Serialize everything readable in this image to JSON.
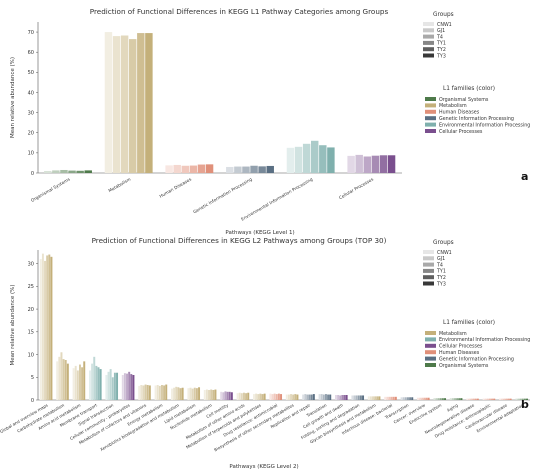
{
  "chart_data": [
    {
      "type": "bar",
      "panel": "a",
      "title": "Prediction of Functional Differences in KEGG L1 Pathway Categories among Groups",
      "xlabel": "Pathways (KEGG Level 1)",
      "ylabel": "Mean relative abundance (%)",
      "ylim": [
        0,
        75
      ],
      "yticks": [
        0,
        10,
        20,
        30,
        40,
        50,
        60,
        70
      ],
      "groups_legend": {
        "title": "Groups",
        "labels": [
          "CNW1",
          "GJ1",
          "T4",
          "TY1",
          "TY2",
          "TY3"
        ],
        "placement": "top-right"
      },
      "families_legend": {
        "title": "L1 families (color)",
        "placement": "right",
        "items": [
          {
            "label": "Organismal Systems",
            "color": "#4e7a4a"
          },
          {
            "label": "Metabolism",
            "color": "#c4b07a"
          },
          {
            "label": "Human Diseases",
            "color": "#e0907a"
          },
          {
            "label": "Genetic Information Processing",
            "color": "#5a6f83"
          },
          {
            "label": "Environmental Information Processing",
            "color": "#7fb0ad"
          },
          {
            "label": "Cellular Processes",
            "color": "#7a4f8e"
          }
        ]
      },
      "categories": [
        "Organismal Systems",
        "Metabolism",
        "Human Diseases",
        "Genetic Information Processing",
        "Environmental Information Processing",
        "Cellular Processes"
      ],
      "families": [
        "Organismal Systems",
        "Metabolism",
        "Human Diseases",
        "Genetic Information Processing",
        "Environmental Information Processing",
        "Cellular Processes"
      ],
      "series": [
        {
          "name": "CNW1",
          "values": [
            1.0,
            70.0,
            3.8,
            3.0,
            12.5,
            8.5
          ]
        },
        {
          "name": "GJ1",
          "values": [
            1.3,
            68.0,
            4.0,
            3.2,
            13.0,
            9.0
          ]
        },
        {
          "name": "T4",
          "values": [
            1.5,
            68.3,
            3.6,
            3.2,
            14.5,
            8.2
          ]
        },
        {
          "name": "TY1",
          "values": [
            1.2,
            66.5,
            3.7,
            3.6,
            16.0,
            8.6
          ]
        },
        {
          "name": "TY2",
          "values": [
            1.1,
            69.5,
            4.2,
            3.3,
            13.8,
            8.8
          ]
        },
        {
          "name": "TY3",
          "values": [
            1.3,
            69.5,
            4.3,
            3.5,
            12.7,
            8.8
          ]
        }
      ],
      "panel_label": "a"
    },
    {
      "type": "bar",
      "panel": "b",
      "title": "Prediction of Functional Differences in KEGG L2 Pathways among Groups (TOP 30)",
      "xlabel": "Pathways (KEGG Level 2)",
      "ylabel": "Mean relative abundance (%)",
      "ylim": [
        0,
        33
      ],
      "yticks": [
        0,
        5,
        10,
        15,
        20,
        25,
        30
      ],
      "groups_legend": {
        "title": "Groups",
        "labels": [
          "CNW1",
          "GJ1",
          "T4",
          "TY1",
          "TY2",
          "TY3"
        ],
        "placement": "top-right"
      },
      "families_legend": {
        "title": "L1 families (color)",
        "placement": "right",
        "items": [
          {
            "label": "Metabolism",
            "color": "#c4b07a"
          },
          {
            "label": "Environmental Information Processing",
            "color": "#7fb0ad"
          },
          {
            "label": "Cellular Processes",
            "color": "#7a4f8e"
          },
          {
            "label": "Human Diseases",
            "color": "#e0907a"
          },
          {
            "label": "Genetic Information Processing",
            "color": "#5a6f83"
          },
          {
            "label": "Organismal Systems",
            "color": "#4e7a4a"
          }
        ]
      },
      "categories": [
        "Global and overview maps",
        "Carbohydrate metabolism",
        "Amino acid metabolism",
        "Membrane transport",
        "Signal transduction",
        "Cellular community - prokaryotes",
        "Metabolism of cofactors and vitamins",
        "Energy metabolism",
        "Xenobiotics biodegradation and metabolism",
        "Lipid metabolism",
        "Nucleotide metabolism",
        "Cell motility",
        "Metabolism of other amino acids",
        "Metabolism of terpenoids and polyketides",
        "Drug resistance: antimicrobial",
        "Biosynthesis of other secondary metabolites",
        "Replication and repair",
        "Translation",
        "Cell growth and death",
        "Folding, sorting and degradation",
        "Glycan biosynthesis and metabolism",
        "Infectious disease: bacterial",
        "Transcription",
        "Cancer: overview",
        "Endocrine system",
        "Aging",
        "Neurodegenerative disease",
        "Drug resistance: antineoplastic",
        "Cardiovascular disease",
        "Environmental adaptation"
      ],
      "families": [
        "Metabolism",
        "Metabolism",
        "Metabolism",
        "Environmental Information Processing",
        "Environmental Information Processing",
        "Cellular Processes",
        "Metabolism",
        "Metabolism",
        "Metabolism",
        "Metabolism",
        "Metabolism",
        "Cellular Processes",
        "Metabolism",
        "Metabolism",
        "Human Diseases",
        "Metabolism",
        "Genetic Information Processing",
        "Genetic Information Processing",
        "Cellular Processes",
        "Genetic Information Processing",
        "Metabolism",
        "Human Diseases",
        "Genetic Information Processing",
        "Human Diseases",
        "Organismal Systems",
        "Organismal Systems",
        "Human Diseases",
        "Human Diseases",
        "Human Diseases",
        "Organismal Systems"
      ],
      "series": [
        {
          "name": "CNW1",
          "values": [
            31.0,
            8.5,
            7.0,
            6.5,
            5.5,
            5.5,
            3.1,
            3.2,
            2.5,
            2.6,
            2.2,
            1.8,
            1.5,
            1.3,
            1.4,
            1.2,
            1.2,
            1.3,
            1.1,
            1.0,
            0.8,
            0.7,
            0.6,
            0.5,
            0.4,
            0.4,
            0.3,
            0.3,
            0.3,
            0.3
          ]
        },
        {
          "name": "GJ1",
          "values": [
            32.2,
            9.5,
            7.5,
            8.0,
            6.2,
            5.9,
            3.3,
            3.3,
            2.7,
            2.7,
            2.3,
            1.7,
            1.6,
            1.4,
            1.3,
            1.2,
            1.3,
            1.3,
            1.1,
            1.0,
            0.8,
            0.7,
            0.6,
            0.5,
            0.4,
            0.4,
            0.3,
            0.3,
            0.3,
            0.3
          ]
        },
        {
          "name": "T4",
          "values": [
            30.6,
            10.5,
            6.5,
            9.5,
            6.8,
            5.8,
            3.2,
            3.1,
            2.9,
            2.5,
            2.2,
            1.9,
            1.5,
            1.3,
            1.4,
            1.3,
            1.2,
            1.2,
            1.0,
            1.0,
            0.8,
            0.7,
            0.6,
            0.5,
            0.4,
            0.4,
            0.3,
            0.3,
            0.3,
            0.3
          ]
        },
        {
          "name": "TY1",
          "values": [
            31.8,
            9.0,
            7.8,
            7.5,
            5.0,
            6.2,
            3.4,
            3.3,
            2.8,
            2.7,
            2.3,
            1.8,
            1.6,
            1.4,
            1.3,
            1.2,
            1.2,
            1.3,
            1.1,
            1.0,
            0.8,
            0.7,
            0.6,
            0.5,
            0.4,
            0.4,
            0.3,
            0.3,
            0.3,
            0.3
          ]
        },
        {
          "name": "TY2",
          "values": [
            32.0,
            8.8,
            7.2,
            7.2,
            6.0,
            5.7,
            3.3,
            3.2,
            2.6,
            2.6,
            2.2,
            1.8,
            1.5,
            1.3,
            1.4,
            1.3,
            1.2,
            1.2,
            1.1,
            1.0,
            0.8,
            0.7,
            0.6,
            0.5,
            0.4,
            0.4,
            0.3,
            0.3,
            0.3,
            0.3
          ]
        },
        {
          "name": "TY3",
          "values": [
            31.5,
            8.0,
            8.5,
            6.8,
            6.0,
            5.5,
            3.2,
            3.4,
            2.7,
            2.8,
            2.3,
            1.7,
            1.6,
            1.4,
            1.3,
            1.2,
            1.3,
            1.2,
            1.1,
            1.0,
            0.8,
            0.7,
            0.6,
            0.5,
            0.4,
            0.4,
            0.3,
            0.3,
            0.3,
            0.3
          ]
        }
      ],
      "panel_label": "b"
    }
  ]
}
